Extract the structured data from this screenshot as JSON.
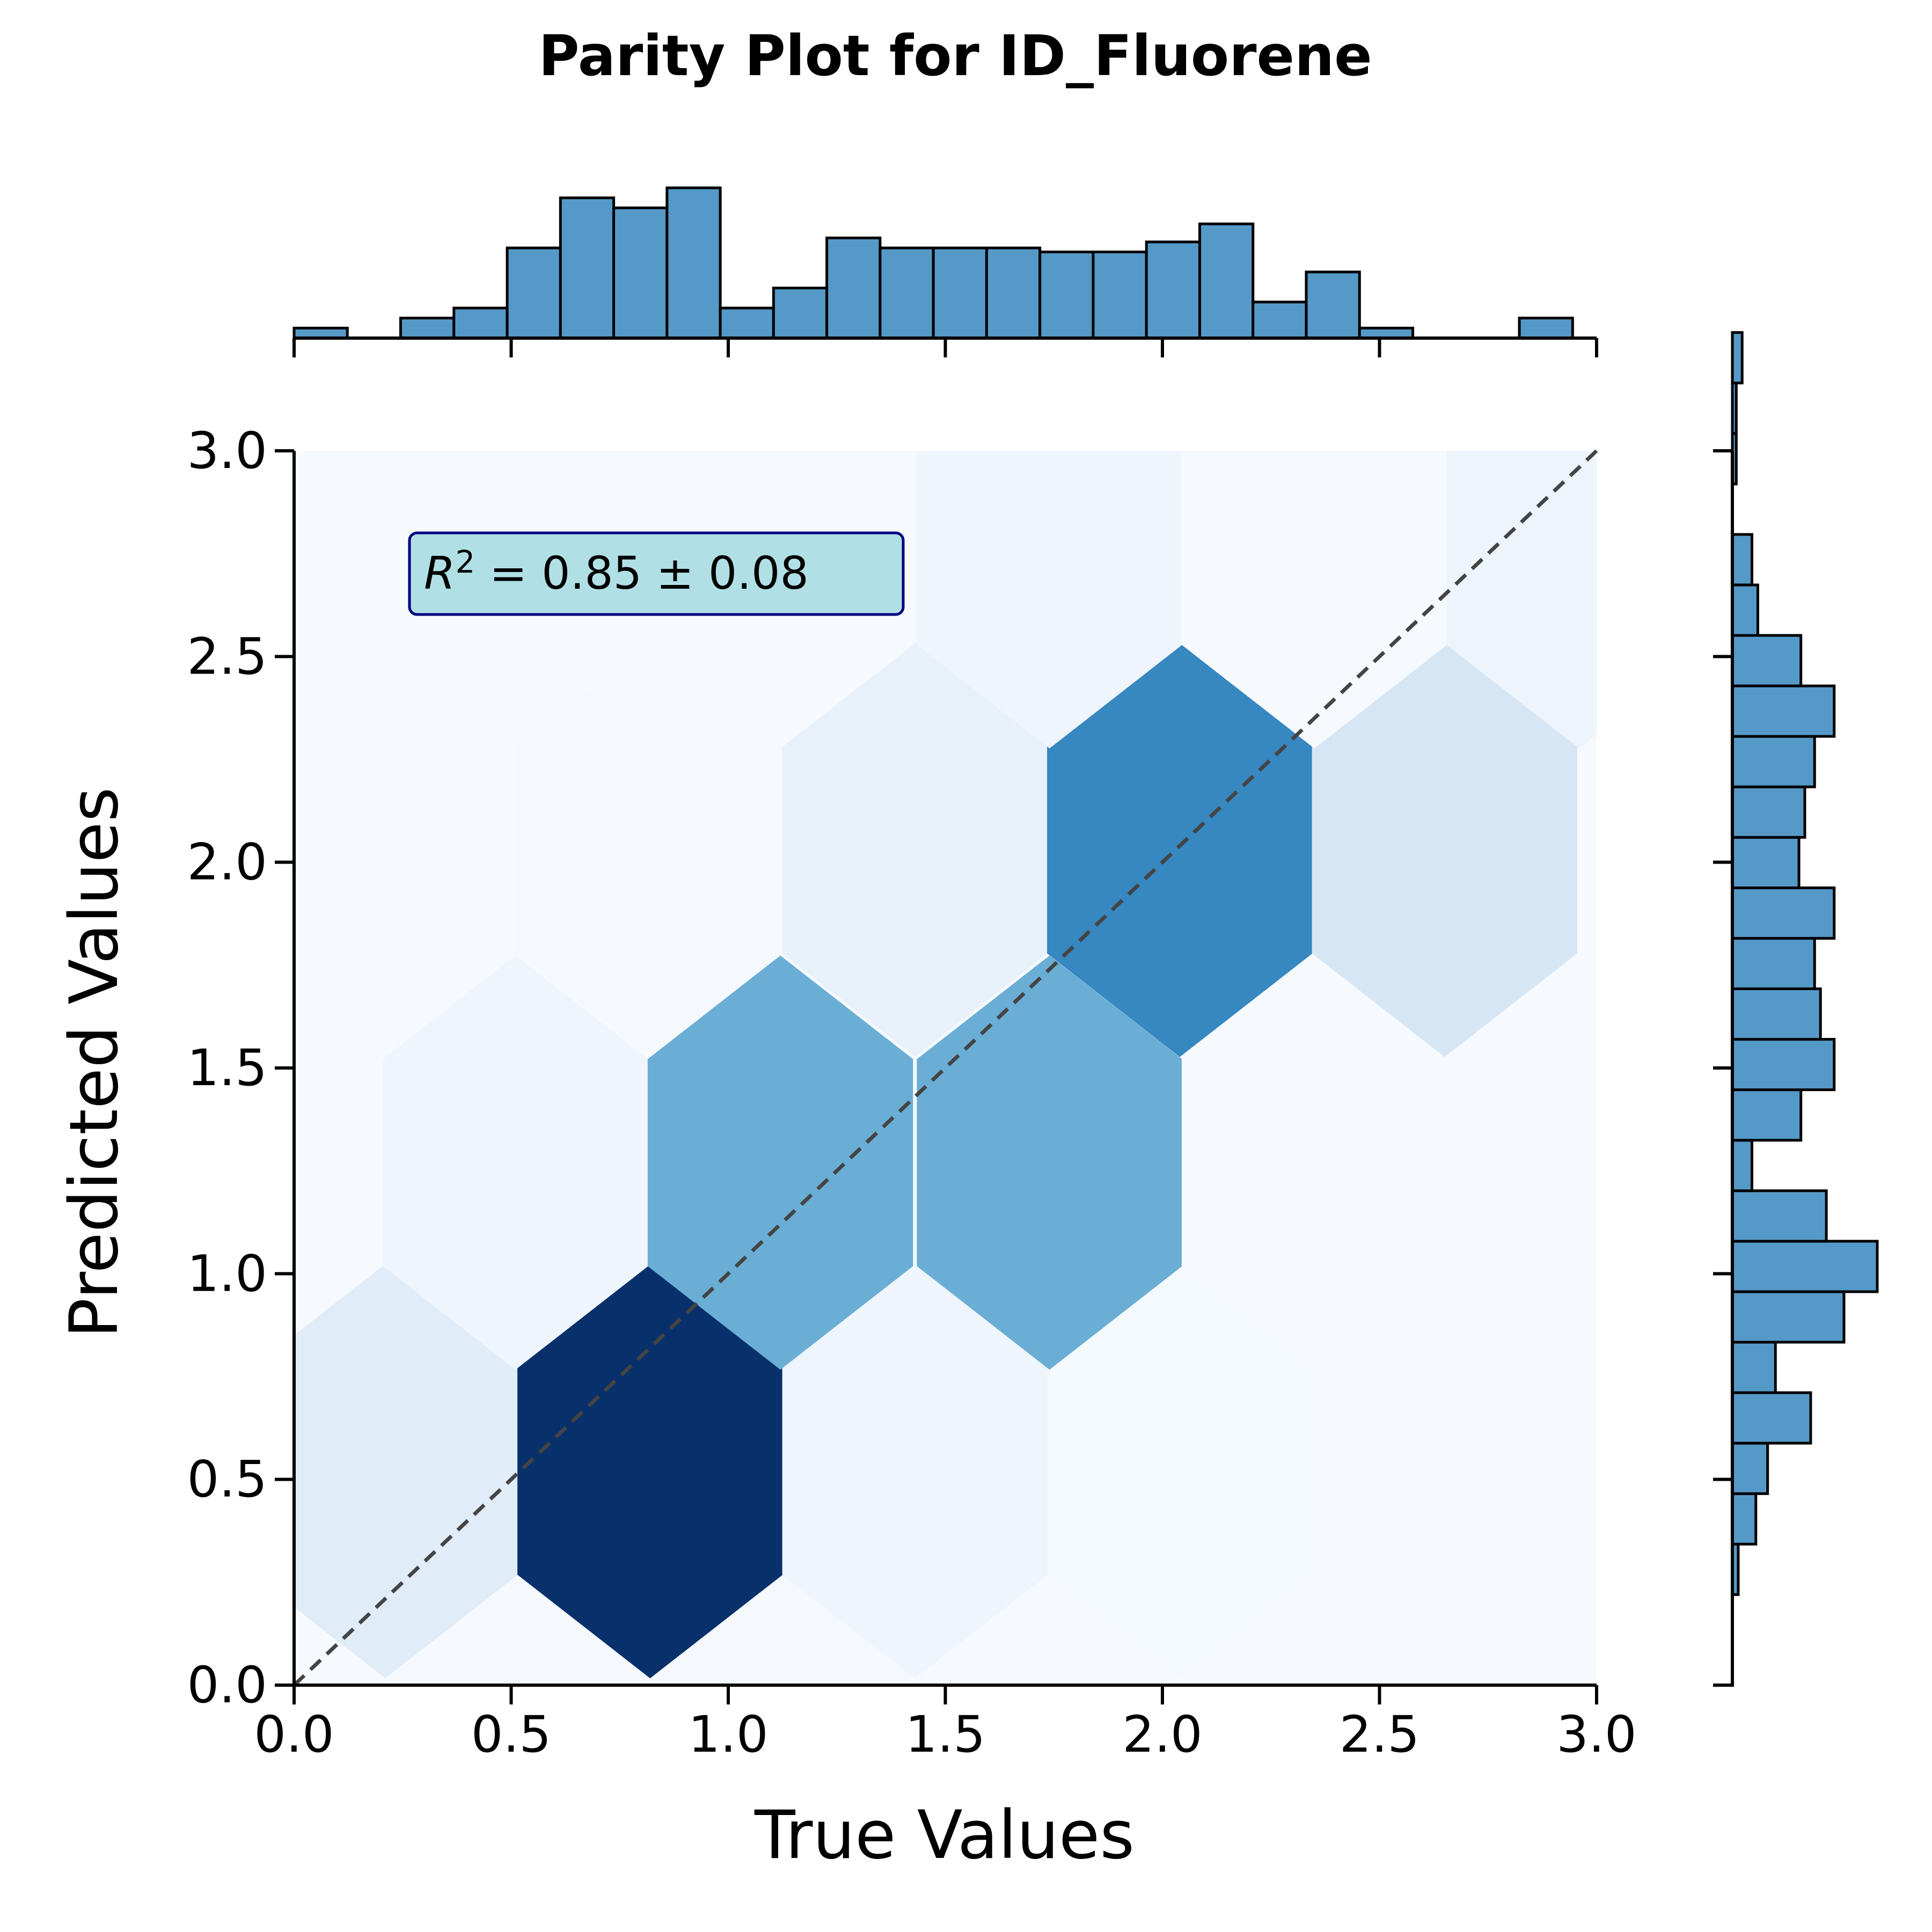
{
  "chart_data": {
    "type": "hexbin",
    "title": "Parity Plot for ID_Fluorene",
    "xlabel": "True Values",
    "ylabel": "Predicted Values",
    "xlim": [
      0.0,
      3.0
    ],
    "ylim": [
      0.0,
      3.0
    ],
    "x_ticks": [
      "0.0",
      "0.5",
      "1.0",
      "1.5",
      "2.0",
      "2.5",
      "3.0"
    ],
    "y_ticks": [
      "0.0",
      "0.5",
      "1.0",
      "1.5",
      "2.0",
      "2.5",
      "3.0"
    ],
    "annotation": {
      "prefix": "R",
      "superscript": "2",
      "text": " = 0.85 ± 0.08"
    },
    "parity_line": {
      "from": [
        0,
        0
      ],
      "to": [
        3,
        3
      ],
      "style": "dashed",
      "color": "#444444"
    },
    "colormap": "Blues",
    "hexbins": [
      {
        "x": 0.51,
        "y": 0.02,
        "color": "#f5f9fe"
      },
      {
        "x": 1.12,
        "y": 0.02,
        "color": "#f5f9fe"
      },
      {
        "x": 1.74,
        "y": 0.02,
        "color": "#f6faff"
      },
      {
        "x": 2.35,
        "y": 0.02,
        "color": "#f6faff"
      },
      {
        "x": 2.96,
        "y": 0.02,
        "color": "#f6faff"
      },
      {
        "x": 0.21,
        "y": 0.52,
        "color": "#e0ecf8"
      },
      {
        "x": 0.82,
        "y": 0.52,
        "color": "#08306b"
      },
      {
        "x": 1.43,
        "y": 0.52,
        "color": "#eef5fc"
      },
      {
        "x": 2.04,
        "y": 0.52,
        "color": "#f4f9fe"
      },
      {
        "x": 2.65,
        "y": 0.52,
        "color": "#f6faff"
      },
      {
        "x": 0.51,
        "y": 1.27,
        "color": "#eef5fc"
      },
      {
        "x": 1.12,
        "y": 1.27,
        "color": "#6aaed6"
      },
      {
        "x": 1.74,
        "y": 1.27,
        "color": "#6aaed6"
      },
      {
        "x": 2.35,
        "y": 1.27,
        "color": "#f6faff"
      },
      {
        "x": 2.96,
        "y": 1.27,
        "color": "#f6faff"
      },
      {
        "x": 0.21,
        "y": 2.03,
        "color": "#f6faff"
      },
      {
        "x": 0.82,
        "y": 2.03,
        "color": "#f5f9fe"
      },
      {
        "x": 1.43,
        "y": 2.03,
        "color": "#e8f1fa"
      },
      {
        "x": 2.04,
        "y": 2.03,
        "color": "#3787c0"
      },
      {
        "x": 2.65,
        "y": 2.03,
        "color": "#d6e6f4"
      },
      {
        "x": 0.51,
        "y": 2.78,
        "color": "#f6faff"
      },
      {
        "x": 1.12,
        "y": 2.78,
        "color": "#f6faff"
      },
      {
        "x": 1.74,
        "y": 2.78,
        "color": "#eef5fc"
      },
      {
        "x": 2.35,
        "y": 2.78,
        "color": "#f6faff"
      },
      {
        "x": 2.96,
        "y": 2.78,
        "color": "#edf4fc"
      }
    ],
    "top_histogram": {
      "bin_width": 0.1227,
      "bin_start": 0.0,
      "counts": [
        0.5,
        0.0,
        1,
        1.5,
        4.5,
        7,
        6.5,
        7.5,
        1.5,
        2.5,
        5,
        4.5,
        4.5,
        4.5,
        4.3,
        4.3,
        4.8,
        5.7,
        1.8,
        3.3,
        0.5,
        0,
        0,
        1
      ],
      "color": "#5599c8",
      "edge_color": "#000000"
    },
    "right_histogram": {
      "bin_height": 0.1227,
      "bin_start": 0.22,
      "counts": [
        0.3,
        1.2,
        1.8,
        4,
        2.2,
        5.7,
        7.4,
        4.8,
        1,
        3.5,
        5.2,
        4.5,
        4.2,
        5.2,
        3.4,
        3.7,
        4.2,
        5.2,
        3.5,
        1.3,
        1,
        0,
        0.2,
        0.2,
        0.5
      ],
      "color": "#5599c8",
      "edge_color": "#000000"
    }
  }
}
